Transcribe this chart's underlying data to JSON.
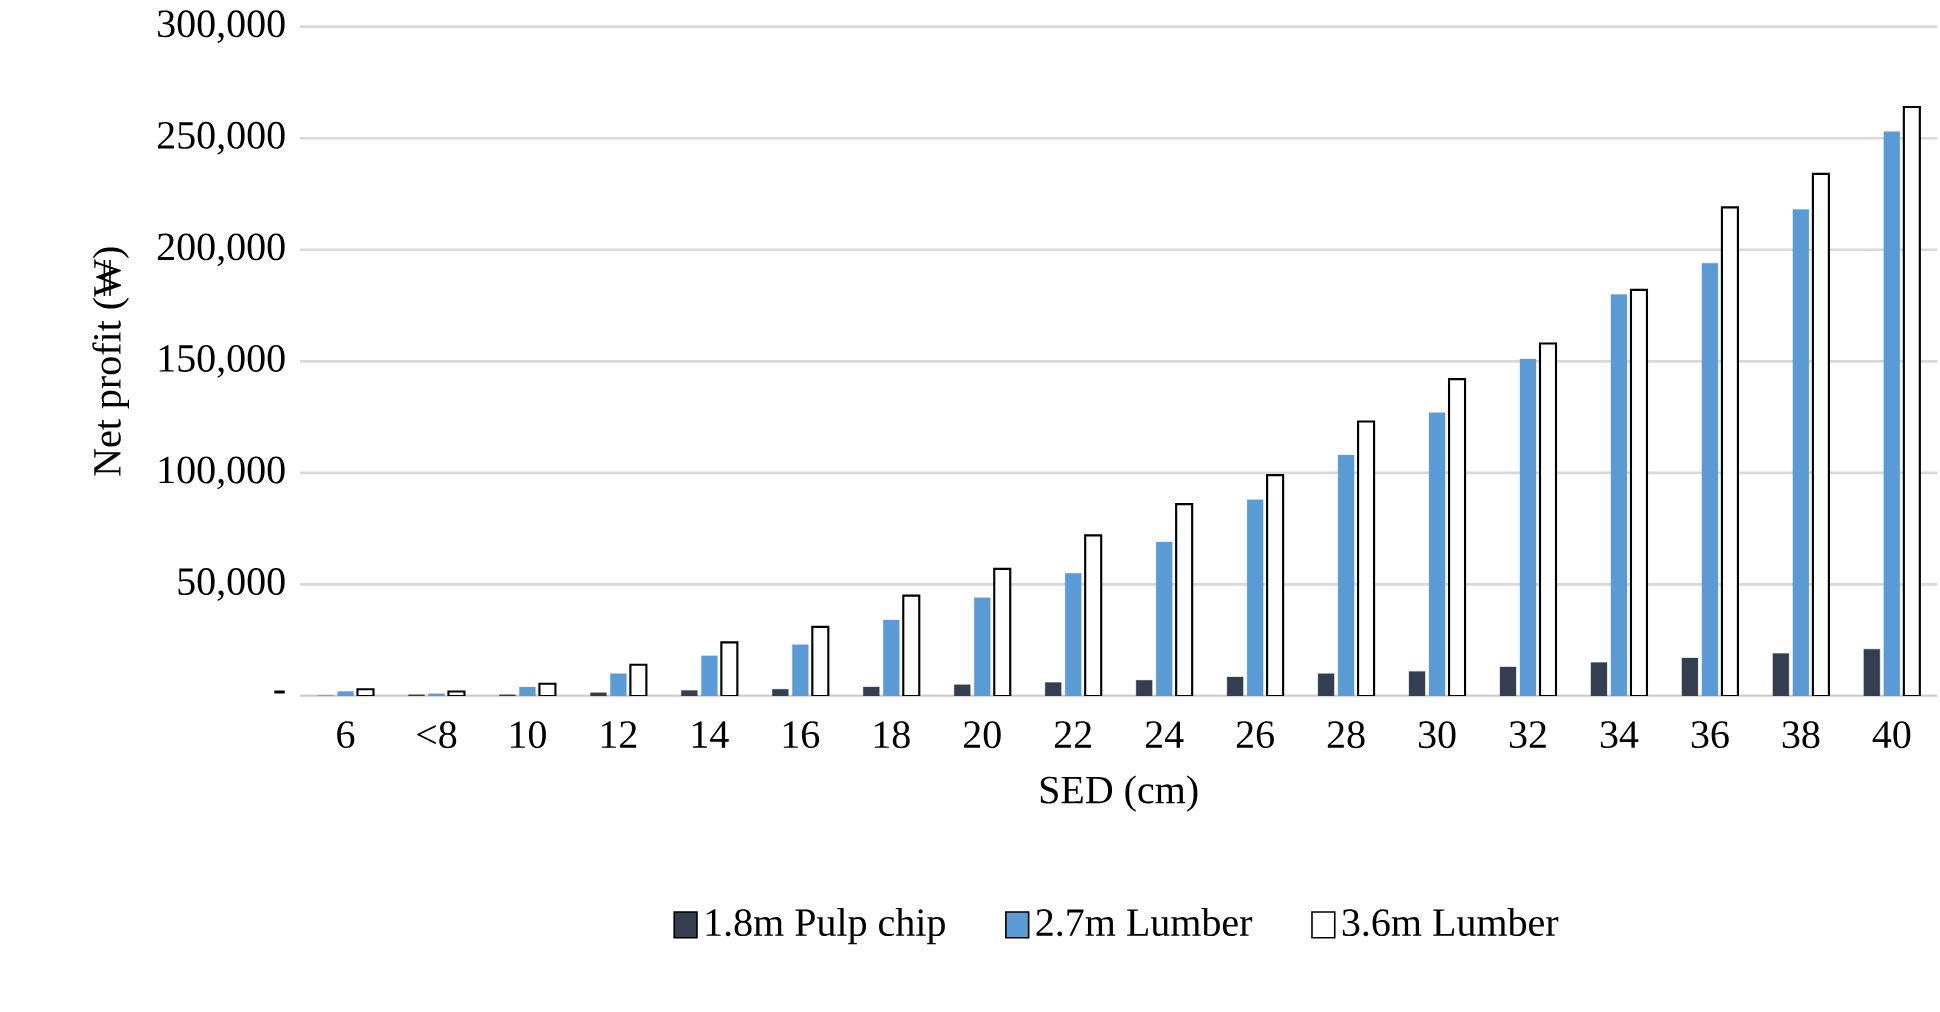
{
  "chart_data": {
    "type": "bar",
    "xlabel": "SED (cm)",
    "ylabel": "Net profit (₩)",
    "categories": [
      "6",
      "<8",
      "10",
      "12",
      "14",
      "16",
      "18",
      "20",
      "22",
      "24",
      "26",
      "28",
      "30",
      "32",
      "34",
      "36",
      "38",
      "40"
    ],
    "series": [
      {
        "name": "1.8m Pulp chip",
        "color": "#333f50",
        "values": [
          0,
          500,
          500,
          1500,
          2500,
          3000,
          4000,
          5000,
          6000,
          7000,
          8500,
          10000,
          11000,
          13000,
          15000,
          17000,
          19000,
          21000
        ]
      },
      {
        "name": "2.7m Lumber",
        "color": "#5b9bd5",
        "values": [
          2000,
          1000,
          4000,
          10000,
          18000,
          23000,
          34000,
          44000,
          55000,
          69000,
          88000,
          108000,
          127000,
          151000,
          180000,
          194000,
          218000,
          253000
        ]
      },
      {
        "name": "3.6m Lumber",
        "color": "#ffffff",
        "values": [
          3000,
          2000,
          5500,
          14000,
          24000,
          31000,
          45000,
          57000,
          72000,
          86000,
          99000,
          123000,
          142000,
          158000,
          182000,
          219000,
          234000,
          264000
        ]
      }
    ],
    "ylim": [
      0,
      300000
    ],
    "yticks": [
      {
        "value": 0,
        "label": "-"
      },
      {
        "value": 50000,
        "label": "50,000"
      },
      {
        "value": 100000,
        "label": "100,000"
      },
      {
        "value": 150000,
        "label": "150,000"
      },
      {
        "value": 200000,
        "label": "200,000"
      },
      {
        "value": 250000,
        "label": "250,000"
      },
      {
        "value": 300000,
        "label": "300,000"
      }
    ],
    "grid": "y",
    "legend": "bottom"
  }
}
